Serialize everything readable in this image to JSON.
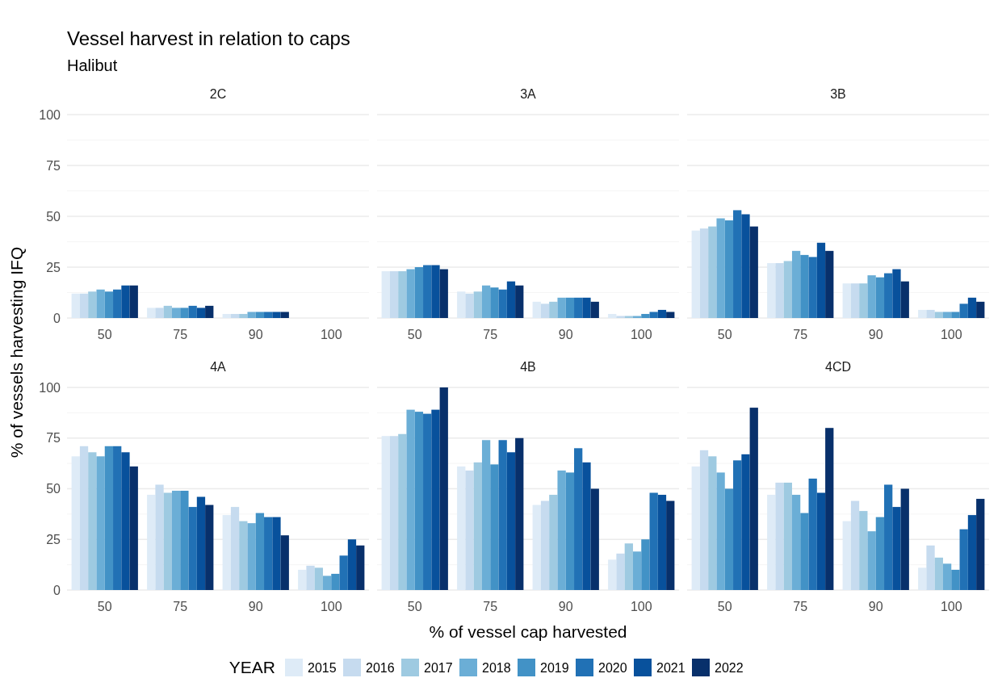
{
  "chart_data": [
    {
      "type": "bar",
      "title": "2C",
      "annotations": [
        "Vessel harvest in relation to caps",
        "Halibut"
      ],
      "categories": [
        "50",
        "75",
        "90",
        "100"
      ],
      "ylim": [
        0,
        100
      ],
      "yticks": [
        0,
        25,
        50,
        75,
        100
      ],
      "grid": "y",
      "series": [
        {
          "color": "#deebf7",
          "values": [
            12,
            5,
            2,
            0
          ]
        },
        {
          "color": "#c6dbef",
          "values": [
            12,
            5,
            2,
            0
          ]
        },
        {
          "color": "#9ecae1",
          "values": [
            13,
            6,
            2,
            0
          ]
        },
        {
          "color": "#6baed6",
          "values": [
            14,
            5,
            3,
            0
          ]
        },
        {
          "color": "#4292c6",
          "values": [
            13,
            5,
            3,
            0
          ]
        },
        {
          "color": "#2171b5",
          "values": [
            14,
            6,
            3,
            0
          ]
        },
        {
          "color": "#08519c",
          "values": [
            16,
            5,
            3,
            0
          ]
        },
        {
          "color": "#08306b",
          "values": [
            16,
            6,
            3,
            0
          ]
        }
      ]
    },
    {
      "type": "bar",
      "title": "3A",
      "categories": [
        "50",
        "75",
        "90",
        "100"
      ],
      "ylim": [
        0,
        100
      ],
      "yticks": [
        0,
        25,
        50,
        75,
        100
      ],
      "grid": "y",
      "tick_labels": "x",
      "series": [
        {
          "color": "#deebf7",
          "values": [
            23,
            13,
            8,
            2
          ]
        },
        {
          "color": "#c6dbef",
          "values": [
            23,
            12,
            7,
            1
          ]
        },
        {
          "color": "#9ecae1",
          "values": [
            23,
            13,
            8,
            1
          ]
        },
        {
          "color": "#6baed6",
          "values": [
            24,
            16,
            10,
            1
          ]
        },
        {
          "color": "#4292c6",
          "values": [
            25,
            15,
            10,
            2
          ]
        },
        {
          "color": "#2171b5",
          "values": [
            26,
            14,
            10,
            3
          ]
        },
        {
          "color": "#08519c",
          "values": [
            26,
            18,
            10,
            4
          ]
        },
        {
          "color": "#08306b",
          "values": [
            24,
            16,
            8,
            3
          ]
        }
      ]
    },
    {
      "type": "bar",
      "title": "3B",
      "categories": [
        "50",
        "75",
        "90",
        "100"
      ],
      "ylim": [
        0,
        100
      ],
      "yticks": [
        0,
        25,
        50,
        75,
        100
      ],
      "grid": "y",
      "tick_labels": "x",
      "series": [
        {
          "color": "#deebf7",
          "values": [
            43,
            27,
            17,
            4
          ]
        },
        {
          "color": "#c6dbef",
          "values": [
            44,
            27,
            17,
            4
          ]
        },
        {
          "color": "#9ecae1",
          "values": [
            45,
            28,
            17,
            3
          ]
        },
        {
          "color": "#6baed6",
          "values": [
            49,
            33,
            21,
            3
          ]
        },
        {
          "color": "#4292c6",
          "values": [
            48,
            31,
            20,
            3
          ]
        },
        {
          "color": "#2171b5",
          "values": [
            53,
            30,
            22,
            7
          ]
        },
        {
          "color": "#08519c",
          "values": [
            51,
            37,
            24,
            10
          ]
        },
        {
          "color": "#08306b",
          "values": [
            45,
            33,
            18,
            8
          ]
        }
      ]
    },
    {
      "type": "bar",
      "title": "4A",
      "ylabel": "% of vessels harvesting IFQ",
      "categories": [
        "50",
        "75",
        "90",
        "100"
      ],
      "ylim": [
        0,
        100
      ],
      "yticks": [
        0,
        25,
        50,
        75,
        100
      ],
      "grid": "y",
      "series": [
        {
          "color": "#deebf7",
          "values": [
            66,
            47,
            37,
            10
          ]
        },
        {
          "color": "#c6dbef",
          "values": [
            71,
            52,
            41,
            12
          ]
        },
        {
          "color": "#9ecae1",
          "values": [
            68,
            48,
            34,
            11
          ]
        },
        {
          "color": "#6baed6",
          "values": [
            66,
            49,
            33,
            7
          ]
        },
        {
          "color": "#4292c6",
          "values": [
            71,
            49,
            38,
            8
          ]
        },
        {
          "color": "#2171b5",
          "values": [
            71,
            41,
            36,
            17
          ]
        },
        {
          "color": "#08519c",
          "values": [
            68,
            46,
            36,
            25
          ]
        },
        {
          "color": "#08306b",
          "values": [
            61,
            42,
            27,
            22
          ]
        }
      ]
    },
    {
      "type": "bar",
      "title": "4B",
      "xlabel": "% of vessel cap harvested",
      "legend_title": "YEAR",
      "legend": "bottom",
      "categories": [
        "50",
        "75",
        "90",
        "100"
      ],
      "ylim": [
        0,
        100
      ],
      "yticks": [
        0,
        25,
        50,
        75,
        100
      ],
      "grid": "y",
      "tick_labels": "x",
      "series": [
        {
          "name": "2015",
          "color": "#deebf7",
          "values": [
            76,
            61,
            42,
            15
          ]
        },
        {
          "name": "2016",
          "color": "#c6dbef",
          "values": [
            76,
            59,
            44,
            18
          ]
        },
        {
          "name": "2017",
          "color": "#9ecae1",
          "values": [
            77,
            63,
            47,
            23
          ]
        },
        {
          "name": "2018",
          "color": "#6baed6",
          "values": [
            89,
            74,
            59,
            19
          ]
        },
        {
          "name": "2019",
          "color": "#4292c6",
          "values": [
            88,
            62,
            58,
            25
          ]
        },
        {
          "name": "2020",
          "color": "#2171b5",
          "values": [
            87,
            74,
            70,
            48
          ]
        },
        {
          "name": "2021",
          "color": "#08519c",
          "values": [
            89,
            68,
            63,
            47
          ]
        },
        {
          "name": "2022",
          "color": "#08306b",
          "values": [
            100,
            75,
            50,
            44
          ]
        }
      ]
    },
    {
      "type": "bar",
      "title": "4CD",
      "categories": [
        "50",
        "75",
        "90",
        "100"
      ],
      "ylim": [
        0,
        100
      ],
      "yticks": [
        0,
        25,
        50,
        75,
        100
      ],
      "grid": "y",
      "tick_labels": "x",
      "series": [
        {
          "color": "#deebf7",
          "values": [
            61,
            47,
            34,
            11
          ]
        },
        {
          "color": "#c6dbef",
          "values": [
            69,
            53,
            44,
            22
          ]
        },
        {
          "color": "#9ecae1",
          "values": [
            66,
            53,
            39,
            16
          ]
        },
        {
          "color": "#6baed6",
          "values": [
            58,
            47,
            29,
            13
          ]
        },
        {
          "color": "#4292c6",
          "values": [
            50,
            38,
            36,
            10
          ]
        },
        {
          "color": "#2171b5",
          "values": [
            64,
            55,
            52,
            30
          ]
        },
        {
          "color": "#08519c",
          "values": [
            67,
            48,
            41,
            37
          ]
        },
        {
          "color": "#08306b",
          "values": [
            90,
            80,
            50,
            45
          ]
        }
      ]
    }
  ]
}
